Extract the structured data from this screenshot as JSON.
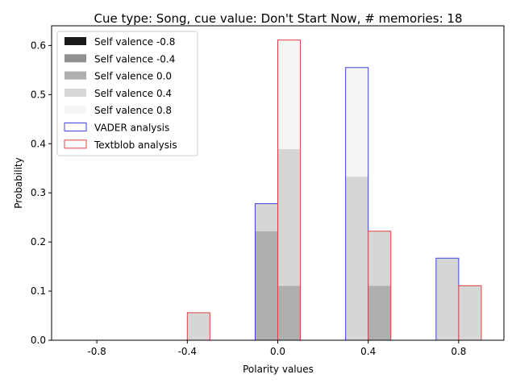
{
  "chart_data": {
    "type": "bar",
    "title": "Cue type: Song, cue value: Don't Start Now, # memories: 18",
    "xlabel": "Polarity values",
    "ylabel": "Probability",
    "xticks": [
      "-0.8",
      "-0.4",
      "0.0",
      "0.4",
      "0.8"
    ],
    "xtick_values": [
      -0.8,
      -0.4,
      0.0,
      0.4,
      0.8
    ],
    "yticks": [
      "0.0",
      "0.1",
      "0.2",
      "0.3",
      "0.4",
      "0.5",
      "0.6"
    ],
    "ylim": [
      0,
      0.64
    ],
    "xlim": [
      -1.0,
      1.0
    ],
    "bar_width": 0.1,
    "legend_position": "upper-left",
    "stack_order": [
      "Self valence -0.8",
      "Self valence -0.4",
      "Self valence 0.0",
      "Self valence 0.4",
      "Self valence 0.8"
    ],
    "groups": [
      {
        "name": "VADER analysis",
        "edge_color": "#4040e0",
        "offset": -0.05,
        "x": [
          -0.8,
          -0.4,
          0.0,
          0.4,
          0.8
        ],
        "stacks": {
          "Self valence -0.8": [
            0,
            0,
            0,
            0,
            0
          ],
          "Self valence -0.4": [
            0,
            0,
            0,
            0,
            0
          ],
          "Self valence 0.0": [
            0,
            0,
            0.222,
            0,
            0
          ],
          "Self valence 0.4": [
            0,
            0,
            0.056,
            0.333,
            0.167
          ],
          "Self valence 0.8": [
            0,
            0,
            0,
            0.222,
            0
          ]
        }
      },
      {
        "name": "Textblob analysis",
        "edge_color": "#e04040",
        "offset": 0.05,
        "x": [
          -0.8,
          -0.4,
          0.0,
          0.4,
          0.8
        ],
        "stacks": {
          "Self valence -0.8": [
            0,
            0,
            0,
            0,
            0
          ],
          "Self valence -0.4": [
            0,
            0,
            0,
            0,
            0
          ],
          "Self valence 0.0": [
            0,
            0,
            0.111,
            0.111,
            0
          ],
          "Self valence 0.4": [
            0,
            0.056,
            0.278,
            0.111,
            0.111
          ],
          "Self valence 0.8": [
            0,
            0,
            0.222,
            0,
            0
          ]
        }
      }
    ],
    "legend": [
      {
        "label": "Self valence -0.8",
        "kind": "fill",
        "color": "#1a1a1a"
      },
      {
        "label": "Self valence -0.4",
        "kind": "fill",
        "color": "#919191"
      },
      {
        "label": "Self valence 0.0",
        "kind": "fill",
        "color": "#afafaf"
      },
      {
        "label": "Self valence 0.4",
        "kind": "fill",
        "color": "#d6d6d6"
      },
      {
        "label": "Self valence 0.8",
        "kind": "fill",
        "color": "#f5f5f5"
      },
      {
        "label": "VADER analysis",
        "kind": "edge",
        "color": "#4040e0"
      },
      {
        "label": "Textblob analysis",
        "kind": "edge",
        "color": "#e04040"
      }
    ]
  }
}
